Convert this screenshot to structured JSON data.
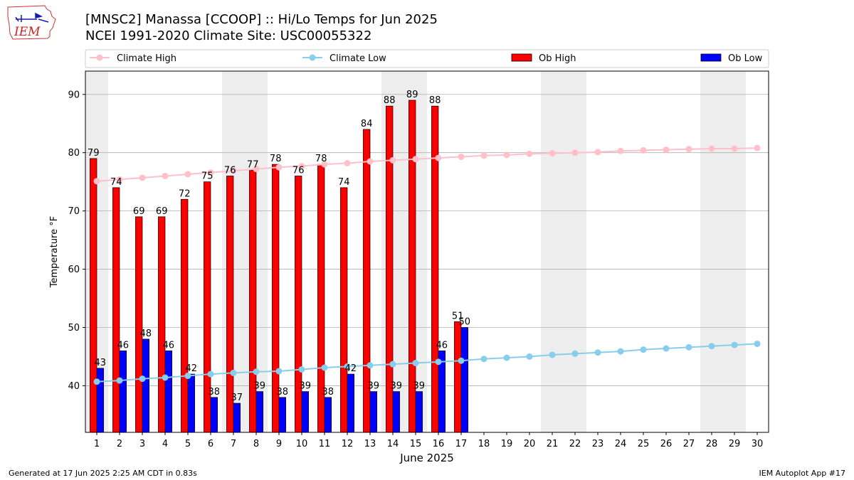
{
  "header": {
    "title_line1": "[MNSC2] Manassa [CCOOP] :: Hi/Lo Temps for Jun 2025",
    "title_line2": "NCEI 1991-2020 Climate Site: USC00055322",
    "logo_text": "IEM"
  },
  "footer": {
    "generated": "Generated at 17 Jun 2025 2:25 AM CDT in 0.83s",
    "app": "IEM Autoplot App #17"
  },
  "colors": {
    "ob_high": "#ff0000",
    "ob_low": "#0000ff",
    "climate_high": "#ffc0cb",
    "climate_low": "#87ceeb",
    "weekend_shade": "#eeeeee",
    "grid": "#b0b0b0"
  },
  "chart_data": {
    "type": "bar",
    "xlabel": "June 2025",
    "ylabel": "Temperature °F",
    "ylim": [
      32,
      94
    ],
    "yticks": [
      40,
      50,
      60,
      70,
      80,
      90
    ],
    "xlim": [
      0.5,
      30.5
    ],
    "grid": "horizontal",
    "legend_position": "top",
    "weekend_shaded_days": [
      1,
      7,
      8,
      14,
      15,
      21,
      22,
      28,
      29
    ],
    "x": [
      1,
      2,
      3,
      4,
      5,
      6,
      7,
      8,
      9,
      10,
      11,
      12,
      13,
      14,
      15,
      16,
      17,
      18,
      19,
      20,
      21,
      22,
      23,
      24,
      25,
      26,
      27,
      28,
      29,
      30
    ],
    "x_tick_labels": [
      "1",
      "2",
      "3",
      "4",
      "5",
      "6",
      "7",
      "8",
      "9",
      "10",
      "11",
      "12",
      "13",
      "14",
      "15",
      "16",
      "17",
      "18",
      "19",
      "20",
      "21",
      "22",
      "23",
      "24",
      "25",
      "26",
      "27",
      "28",
      "29",
      "30"
    ],
    "legend": [
      "Climate High",
      "Climate Low",
      "Ob High",
      "Ob Low"
    ],
    "series": [
      {
        "name": "Ob High",
        "kind": "bar",
        "x": [
          1,
          2,
          3,
          4,
          5,
          6,
          7,
          8,
          9,
          10,
          11,
          12,
          13,
          14,
          15,
          16,
          17
        ],
        "values": [
          79,
          74,
          69,
          69,
          72,
          75,
          76,
          77,
          78,
          76,
          78,
          74,
          84,
          88,
          89,
          88,
          51
        ],
        "labels": [
          "79",
          "74",
          "69",
          "69",
          "72",
          "75",
          "76",
          "77",
          "78",
          "76",
          "78",
          "74",
          "84",
          "88",
          "89",
          "88",
          "51"
        ]
      },
      {
        "name": "Ob Low",
        "kind": "bar",
        "x": [
          1,
          2,
          3,
          4,
          5,
          6,
          7,
          8,
          9,
          10,
          11,
          12,
          13,
          14,
          15,
          16,
          17
        ],
        "values": [
          43,
          46,
          48,
          46,
          42,
          38,
          37,
          39,
          38,
          39,
          38,
          42,
          39,
          39,
          39,
          46,
          50
        ],
        "labels": [
          "43",
          "46",
          "48",
          "46",
          "42",
          "38",
          "37",
          "39",
          "38",
          "39",
          "38",
          "42",
          "39",
          "39",
          "39",
          "46",
          "50"
        ]
      },
      {
        "name": "Climate High",
        "kind": "line",
        "x": [
          1,
          2,
          3,
          4,
          5,
          6,
          7,
          8,
          9,
          10,
          11,
          12,
          13,
          14,
          15,
          16,
          17,
          18,
          19,
          20,
          21,
          22,
          23,
          24,
          25,
          26,
          27,
          28,
          29,
          30
        ],
        "values": [
          75.1,
          75.4,
          75.7,
          76.0,
          76.3,
          76.6,
          76.9,
          77.2,
          77.5,
          77.7,
          78.0,
          78.2,
          78.5,
          78.7,
          78.9,
          79.1,
          79.3,
          79.5,
          79.6,
          79.8,
          79.9,
          80.0,
          80.1,
          80.3,
          80.4,
          80.5,
          80.6,
          80.7,
          80.7,
          80.8
        ]
      },
      {
        "name": "Climate Low",
        "kind": "line",
        "x": [
          1,
          2,
          3,
          4,
          5,
          6,
          7,
          8,
          9,
          10,
          11,
          12,
          13,
          14,
          15,
          16,
          17,
          18,
          19,
          20,
          21,
          22,
          23,
          24,
          25,
          26,
          27,
          28,
          29,
          30
        ],
        "values": [
          40.7,
          40.9,
          41.2,
          41.4,
          41.7,
          42.0,
          42.2,
          42.4,
          42.5,
          42.8,
          43.1,
          43.3,
          43.5,
          43.7,
          43.9,
          44.1,
          44.3,
          44.6,
          44.8,
          45.0,
          45.3,
          45.5,
          45.7,
          45.9,
          46.2,
          46.4,
          46.6,
          46.8,
          47.0,
          47.2
        ]
      }
    ]
  }
}
